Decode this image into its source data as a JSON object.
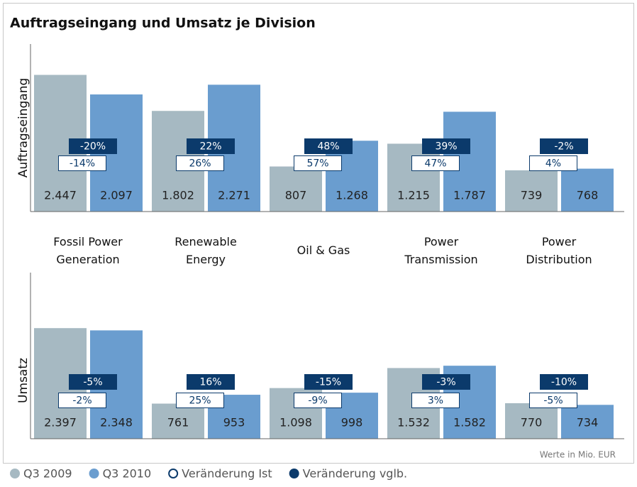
{
  "chart_data": {
    "type": "bar",
    "title": "Auftragseingang und Umsatz je Division",
    "note": "Werte in Mio. EUR",
    "categories": [
      "Fossil Power Generation",
      "Renewable Energy",
      "Oil & Gas",
      "Power Transmission",
      "Power Distribution"
    ],
    "series": [
      {
        "name": "Q3 2009",
        "color": "#a6b9c2"
      },
      {
        "name": "Q3 2010",
        "color": "#6a9dcf"
      },
      {
        "name": "Veränderung Ist",
        "color": "#ffffff"
      },
      {
        "name": "Veränderung vglb.",
        "color": "#0b3a6b"
      }
    ],
    "panels": [
      {
        "y_label": "Auftragseingang",
        "ylim": [
          0,
          3000
        ],
        "series": [
          {
            "values": [
              2447,
              1802,
              807,
              1215,
              739
            ],
            "value_labels": [
              "2.447",
              "1.802",
              "807",
              "1.215",
              "739"
            ]
          },
          {
            "values": [
              2097,
              2271,
              1268,
              1787,
              768
            ],
            "value_labels": [
              "2.097",
              "2.271",
              "1.268",
              "1.787",
              "768"
            ]
          },
          {
            "values": [
              -14,
              26,
              57,
              47,
              4
            ],
            "value_labels": [
              "-14%",
              "26%",
              "57%",
              "47%",
              "4%"
            ]
          },
          {
            "values": [
              -20,
              22,
              48,
              39,
              -2
            ],
            "value_labels": [
              "-20%",
              "22%",
              "48%",
              "39%",
              "-2%"
            ]
          }
        ]
      },
      {
        "y_label": "Umsatz",
        "ylim": [
          0,
          3600
        ],
        "series": [
          {
            "values": [
              2397,
              761,
              1098,
              1532,
              770
            ],
            "value_labels": [
              "2.397",
              "761",
              "1.098",
              "1.532",
              "770"
            ]
          },
          {
            "values": [
              2348,
              953,
              998,
              1582,
              734
            ],
            "value_labels": [
              "2.348",
              "953",
              "998",
              "1.582",
              "734"
            ]
          },
          {
            "values": [
              -2,
              25,
              -9,
              3,
              -5
            ],
            "value_labels": [
              "-2%",
              "25%",
              "-9%",
              "3%",
              "-5%"
            ]
          },
          {
            "values": [
              -5,
              16,
              -15,
              -3,
              -10
            ],
            "value_labels": [
              "-5%",
              "16%",
              "-15%",
              "-3%",
              "-10%"
            ]
          }
        ]
      }
    ]
  }
}
